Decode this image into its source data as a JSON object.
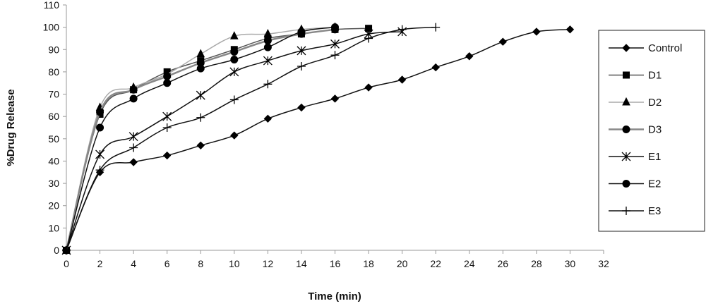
{
  "chart_data": {
    "type": "line",
    "title": "",
    "xlabel": "Time (min)",
    "ylabel": "%Drug Release",
    "xlim": [
      0,
      32
    ],
    "ylim": [
      0,
      110
    ],
    "xticks": [
      0,
      2,
      4,
      6,
      8,
      10,
      12,
      14,
      16,
      18,
      20,
      22,
      24,
      26,
      28,
      30,
      32
    ],
    "yticks": [
      0,
      10,
      20,
      30,
      40,
      50,
      60,
      70,
      80,
      90,
      100,
      110
    ],
    "grid": false,
    "legend": "right",
    "series": [
      {
        "name": "Control",
        "marker": "diamond",
        "color": "#111111",
        "x": [
          0,
          2,
          4,
          6,
          8,
          10,
          12,
          14,
          16,
          18,
          20,
          22,
          24,
          26,
          28,
          30
        ],
        "y": [
          0,
          35,
          39.5,
          42.5,
          47,
          51.5,
          59,
          64,
          68,
          73,
          76.5,
          82,
          87,
          93.5,
          98,
          99
        ]
      },
      {
        "name": "D1",
        "marker": "square",
        "color": "#555555",
        "x": [
          0,
          2,
          4,
          6,
          8,
          10,
          12,
          14,
          16,
          18
        ],
        "y": [
          0,
          61,
          72,
          80,
          85,
          90,
          95,
          97,
          99,
          99.5
        ]
      },
      {
        "name": "D2",
        "marker": "triangle",
        "color": "#aaaaaa",
        "x": [
          0,
          2,
          4,
          6,
          8,
          10,
          12,
          14,
          16
        ],
        "y": [
          0,
          64,
          73,
          79,
          88,
          96,
          97,
          99,
          100
        ]
      },
      {
        "name": "D3",
        "marker": "circle",
        "color": "#888888",
        "x": [
          0,
          2,
          4,
          6,
          8,
          10,
          12,
          14,
          16
        ],
        "y": [
          0,
          62,
          72,
          78,
          84,
          89,
          94,
          97,
          99
        ]
      },
      {
        "name": "E1",
        "marker": "asterisk",
        "color": "#111111",
        "x": [
          0,
          2,
          4,
          6,
          8,
          10,
          12,
          14,
          16,
          18,
          20
        ],
        "y": [
          0,
          43,
          51,
          60,
          69.5,
          80,
          85,
          89.5,
          92.5,
          97,
          98
        ]
      },
      {
        "name": "E2",
        "marker": "circle",
        "color": "#111111",
        "x": [
          0,
          2,
          4,
          6,
          8,
          10,
          12,
          14,
          16
        ],
        "y": [
          0,
          55,
          68,
          75,
          81.5,
          85.5,
          91,
          98,
          100
        ]
      },
      {
        "name": "E3",
        "marker": "plus",
        "color": "#111111",
        "x": [
          0,
          2,
          4,
          6,
          8,
          10,
          12,
          14,
          16,
          18,
          20,
          22
        ],
        "y": [
          0,
          36,
          46,
          55,
          59.5,
          67.5,
          74.5,
          82.5,
          87.5,
          95,
          99,
          100
        ]
      }
    ]
  }
}
